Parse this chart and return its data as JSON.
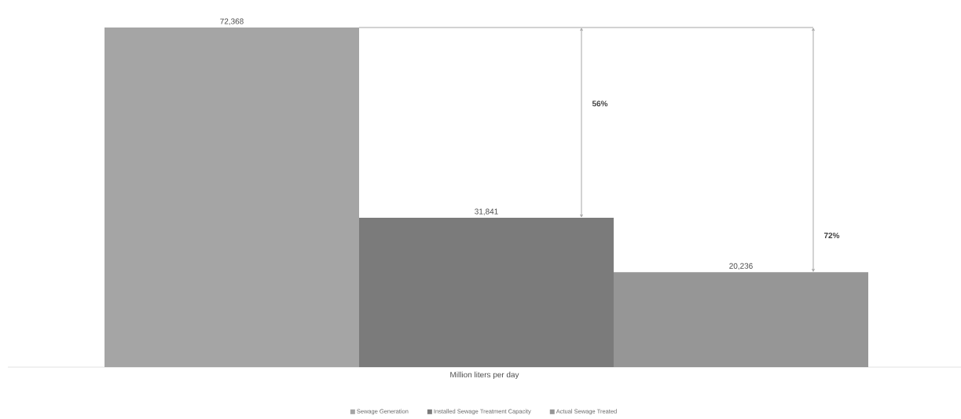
{
  "chart_data": {
    "type": "bar",
    "categories": [
      null
    ],
    "xlabel": "Million liters per day",
    "series": [
      {
        "name": "Sewage Generation",
        "color": "#a5a5a5",
        "values": [
          72368
        ],
        "value_labels": [
          "72,368"
        ]
      },
      {
        "name": "Installed Sewage Treatment Capacity",
        "color": "#7b7b7b",
        "values": [
          31841
        ],
        "value_labels": [
          "31,841"
        ]
      },
      {
        "name": "Actual Sewage Treated",
        "color": "#969696",
        "values": [
          20236
        ],
        "value_labels": [
          "20,236"
        ]
      }
    ],
    "annotations": [
      "56%",
      "72%"
    ],
    "legend": "bottom"
  }
}
